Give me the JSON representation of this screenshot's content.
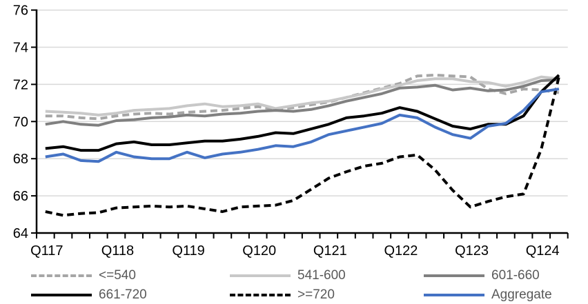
{
  "chart_data": {
    "type": "line",
    "title": "",
    "categories": [
      "Q117",
      "Q217",
      "Q317",
      "Q417",
      "Q118",
      "Q218",
      "Q318",
      "Q418",
      "Q119",
      "Q219",
      "Q319",
      "Q419",
      "Q120",
      "Q220",
      "Q320",
      "Q420",
      "Q121",
      "Q221",
      "Q321",
      "Q421",
      "Q122",
      "Q222",
      "Q322",
      "Q422",
      "Q123",
      "Q223",
      "Q323",
      "Q423",
      "Q124",
      "Q224"
    ],
    "x_axis_shown_labels": [
      "Q117",
      "Q118",
      "Q119",
      "Q120",
      "Q121",
      "Q122",
      "Q123",
      "Q124"
    ],
    "xtick_label_every": 4,
    "ylim": [
      64,
      76
    ],
    "ytick_step": 2,
    "ytick_labels": [
      "64",
      "66",
      "68",
      "70",
      "72",
      "74",
      "76"
    ],
    "grid": "horizontal",
    "gridline_color": "#d9d9d9",
    "axis_color": "#000000",
    "axis_text_color": "#000000",
    "legend_position": "bottom",
    "legend_text_color": "#595959",
    "series": [
      {
        "name": "<=540",
        "color": "#a6a6a6",
        "style": "dashed",
        "values": [
          70.3,
          70.3,
          70.2,
          70.15,
          70.3,
          70.4,
          70.45,
          70.4,
          70.5,
          70.55,
          70.6,
          70.7,
          70.8,
          70.65,
          70.75,
          70.9,
          71.05,
          71.3,
          71.55,
          71.8,
          72.05,
          72.45,
          72.5,
          72.45,
          72.4,
          71.75,
          71.5,
          71.75,
          71.7,
          71.55
        ]
      },
      {
        "name": "541-600",
        "color": "#c8c8c8",
        "style": "solid",
        "values": [
          70.55,
          70.5,
          70.45,
          70.35,
          70.45,
          70.6,
          70.65,
          70.7,
          70.85,
          70.95,
          70.8,
          70.85,
          70.95,
          70.7,
          70.85,
          71.0,
          71.1,
          71.3,
          71.5,
          71.75,
          71.95,
          72.2,
          72.3,
          72.3,
          72.15,
          72.1,
          71.9,
          72.1,
          72.4,
          72.3
        ]
      },
      {
        "name": "601-660",
        "color": "#808080",
        "style": "solid",
        "values": [
          69.85,
          70.0,
          69.85,
          69.8,
          70.05,
          70.1,
          70.2,
          70.25,
          70.35,
          70.3,
          70.4,
          70.45,
          70.55,
          70.6,
          70.55,
          70.65,
          70.85,
          71.1,
          71.3,
          71.5,
          71.8,
          71.85,
          71.95,
          71.7,
          71.8,
          71.65,
          71.7,
          71.9,
          72.2,
          72.25
        ]
      },
      {
        "name": "661-720",
        "color": "#000000",
        "style": "solid",
        "values": [
          68.55,
          68.65,
          68.45,
          68.45,
          68.8,
          68.9,
          68.75,
          68.75,
          68.85,
          68.95,
          68.95,
          69.05,
          69.2,
          69.4,
          69.35,
          69.6,
          69.85,
          70.2,
          70.3,
          70.45,
          70.75,
          70.55,
          70.15,
          69.75,
          69.6,
          69.85,
          69.85,
          70.3,
          71.6,
          72.5
        ]
      },
      {
        "name": ">=720",
        "color": "#000000",
        "style": "dashed",
        "values": [
          65.15,
          64.95,
          65.05,
          65.1,
          65.35,
          65.4,
          65.45,
          65.4,
          65.45,
          65.3,
          65.15,
          65.4,
          65.45,
          65.5,
          65.75,
          66.35,
          66.95,
          67.3,
          67.6,
          67.75,
          68.1,
          68.2,
          67.4,
          66.3,
          65.4,
          65.7,
          65.95,
          66.1,
          68.5,
          72.4
        ]
      },
      {
        "name": "Aggregate",
        "color": "#4472c4",
        "style": "solid",
        "values": [
          68.1,
          68.25,
          67.9,
          67.85,
          68.35,
          68.1,
          68.0,
          68.0,
          68.35,
          68.05,
          68.25,
          68.35,
          68.5,
          68.7,
          68.65,
          68.9,
          69.3,
          69.5,
          69.7,
          69.9,
          70.35,
          70.2,
          69.7,
          69.3,
          69.1,
          69.75,
          69.9,
          70.6,
          71.6,
          71.75
        ]
      }
    ]
  }
}
